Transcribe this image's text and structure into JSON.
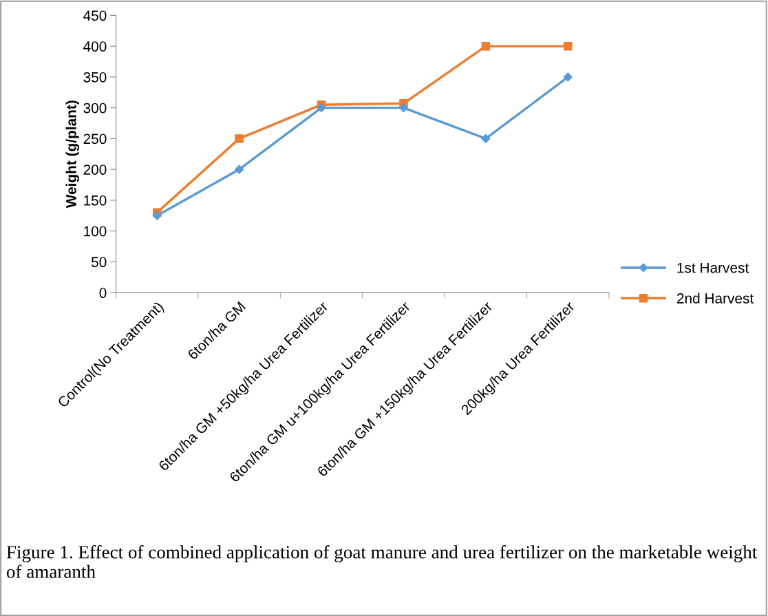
{
  "chart_data": {
    "type": "line",
    "ylabel": "Weight (g/plant)",
    "categories": [
      "Control(No Treatment)",
      "6ton/ha GM",
      "6ton/ha GM +50kg/ha Urea Fertilizer",
      "6ton/ha GM u+100kg/ha Urea Fertilizer",
      "6ton/ha GM +150kg/ha Urea Fertilizer",
      "200kg/ha Urea Fertilizer"
    ],
    "series": [
      {
        "name": "1st Harvest",
        "color": "#5b9bd5",
        "marker": "diamond",
        "values": [
          125,
          200,
          300,
          300,
          250,
          350
        ]
      },
      {
        "name": "2nd Harvest",
        "color": "#ed7d31",
        "marker": "square",
        "values": [
          130,
          250,
          305,
          307,
          400,
          400
        ]
      }
    ],
    "ylim": [
      0,
      450
    ],
    "yticks": [
      0,
      50,
      100,
      150,
      200,
      250,
      300,
      350,
      400,
      450
    ],
    "grid": false,
    "legend": "right",
    "line_style": "solid",
    "annotations": [
      "Figure 1. Effect of combined application of goat manure and urea fertilizer on the marketable weight of amaranth"
    ]
  }
}
